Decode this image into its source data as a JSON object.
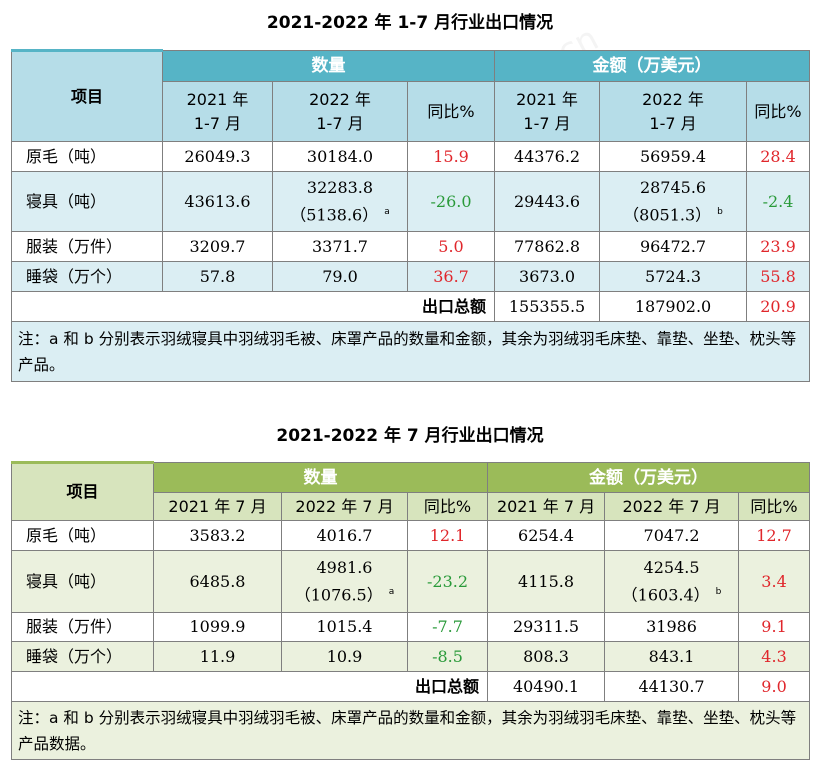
{
  "watermark": "cfd.com.cn",
  "table1": {
    "title": "2021-2022 年 1-7 月行业出口情况",
    "item_header": "项目",
    "qty_header": "数量",
    "amount_header": "金额（万美元）",
    "sub_headers": [
      "2021 年\n1-7 月",
      "2022 年\n1-7 月",
      "同比%",
      "2021 年\n1-7 月",
      "2022 年\n1-7 月",
      "同比%"
    ],
    "rows": [
      {
        "label": "原毛（吨）",
        "q2021": "26049.3",
        "q2022": "30184.0",
        "q2022_sub": "",
        "q_note": "",
        "qyoy": "15.9",
        "a2021": "44376.2",
        "a2022": "56959.4",
        "a2022_sub": "",
        "a_note": "",
        "ayoy": "28.4"
      },
      {
        "label": "寝具（吨）",
        "q2021": "43613.6",
        "q2022": "32283.8",
        "q2022_sub": "（5138.6）",
        "q_note": "a",
        "qyoy": "-26.0",
        "a2021": "29443.6",
        "a2022": "28745.6",
        "a2022_sub": "（8051.3）",
        "a_note": "b",
        "ayoy": "-2.4"
      },
      {
        "label": "服装（万件）",
        "q2021": "3209.7",
        "q2022": "3371.7",
        "q2022_sub": "",
        "q_note": "",
        "qyoy": "5.0",
        "a2021": "77862.8",
        "a2022": "96472.7",
        "a2022_sub": "",
        "a_note": "",
        "ayoy": "23.9"
      },
      {
        "label": "睡袋（万个）",
        "q2021": "57.8",
        "q2022": "79.0",
        "q2022_sub": "",
        "q_note": "",
        "qyoy": "36.7",
        "a2021": "3673.0",
        "a2022": "5724.3",
        "a2022_sub": "",
        "a_note": "",
        "ayoy": "55.8"
      }
    ],
    "total_label": "出口总额",
    "total_2021": "155355.5",
    "total_2022": "187902.0",
    "total_yoy": "20.9",
    "note": "注：a 和 b 分别表示羽绒寝具中羽绒羽毛被、床罩产品的数量和金额，其余为羽绒羽毛床垫、靠垫、坐垫、枕头等产品。"
  },
  "table2": {
    "title": "2021-2022 年 7 月行业出口情况",
    "item_header": "项目",
    "qty_header": "数量",
    "amount_header": "金额（万美元）",
    "sub_headers": [
      "2021 年 7 月",
      "2022 年 7 月",
      "同比%",
      "2021 年 7 月",
      "2022 年 7 月",
      "同比%"
    ],
    "rows": [
      {
        "label": "原毛（吨）",
        "q2021": "3583.2",
        "q2022": "4016.7",
        "q2022_sub": "",
        "q_note": "",
        "qyoy": "12.1",
        "a2021": "6254.4",
        "a2022": "7047.2",
        "a2022_sub": "",
        "a_note": "",
        "ayoy": "12.7"
      },
      {
        "label": "寝具（吨）",
        "q2021": "6485.8",
        "q2022": "4981.6",
        "q2022_sub": "（1076.5）",
        "q_note": "a",
        "qyoy": "-23.2",
        "a2021": "4115.8",
        "a2022": "4254.5",
        "a2022_sub": "（1603.4）",
        "a_note": "b",
        "ayoy": "3.4"
      },
      {
        "label": "服装（万件）",
        "q2021": "1099.9",
        "q2022": "1015.4",
        "q2022_sub": "",
        "q_note": "",
        "qyoy": "-7.7",
        "a2021": "29311.5",
        "a2022": "31986",
        "a2022_sub": "",
        "a_note": "",
        "ayoy": "9.1"
      },
      {
        "label": "睡袋（万个）",
        "q2021": "11.9",
        "q2022": "10.9",
        "q2022_sub": "",
        "q_note": "",
        "qyoy": "-8.5",
        "a2021": "808.3",
        "a2022": "843.1",
        "a2022_sub": "",
        "a_note": "",
        "ayoy": "4.3"
      }
    ],
    "total_label": "出口总额",
    "total_2021": "40490.1",
    "total_2022": "44130.7",
    "total_yoy": "9.0",
    "note": "注：a 和 b 分别表示羽绒寝具中羽绒羽毛被、床罩产品的数量和金额，其余为羽绒羽毛床垫、靠垫、坐垫、枕头等产品数据。"
  },
  "colors": {
    "t1_header": "#56b4c6",
    "t1_sub": "#b6dde8",
    "t1_alt": "#dbeef3",
    "t2_header": "#9bbb59",
    "t2_sub": "#d7e4bd",
    "t2_alt": "#ebf1de",
    "positive": "#e0262b",
    "negative": "#2a9a3a"
  }
}
